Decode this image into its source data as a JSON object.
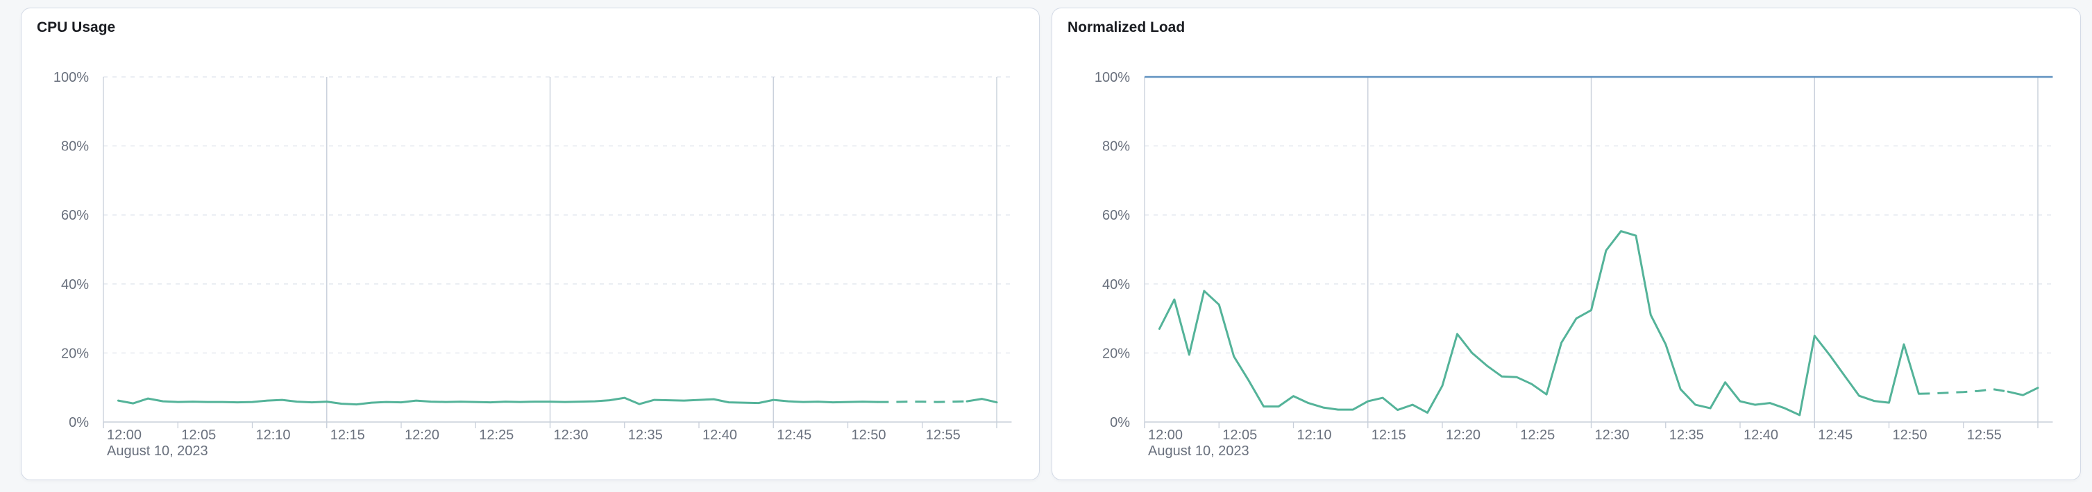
{
  "colors": {
    "series_green": "#54b399",
    "series_blue": "#6092c0",
    "axis_label": "#69707d",
    "title_text": "#1a1c21",
    "grid_vertical": "#c8cfda",
    "grid_dashed": "#dfe4ec",
    "panel_border": "#d3dae6",
    "page_background": "#f5f7f9"
  },
  "chart_data": [
    {
      "type": "line",
      "title": "CPU Usage",
      "date_label": "August 10, 2023",
      "xlabel": "",
      "ylabel": "",
      "ylim": [
        0,
        100
      ],
      "xlim_minutes": [
        0,
        61
      ],
      "grid": true,
      "legend": "none",
      "x_tick_interval_minutes": 5,
      "x_tick_labels": [
        "12:00",
        "12:05",
        "12:10",
        "12:15",
        "12:20",
        "12:25",
        "12:30",
        "12:35",
        "12:40",
        "12:45",
        "12:50",
        "12:55"
      ],
      "x_major_gridline_minutes": [
        15,
        30,
        45,
        60
      ],
      "y_ticks": [
        0,
        20,
        40,
        60,
        80,
        100
      ],
      "y_tick_labels": [
        "0%",
        "20%",
        "40%",
        "60%",
        "80%",
        "100%"
      ],
      "series": [
        {
          "name": "CPU Usage",
          "color": "#54b399",
          "start_minute": 1,
          "dashed_segment_minutes": [
            52,
            58
          ],
          "values": [
            6.2,
            5.4,
            6.8,
            6.0,
            5.8,
            5.9,
            5.8,
            5.8,
            5.7,
            5.8,
            6.2,
            6.4,
            5.9,
            5.7,
            5.9,
            5.3,
            5.1,
            5.6,
            5.8,
            5.7,
            6.2,
            5.9,
            5.8,
            5.9,
            5.8,
            5.7,
            5.9,
            5.8,
            5.9,
            5.9,
            5.8,
            5.9,
            6.0,
            6.3,
            7.0,
            5.2,
            6.4,
            6.3,
            6.2,
            6.4,
            6.6,
            5.7,
            5.6,
            5.5,
            6.4,
            6.0,
            5.8,
            5.9,
            5.7,
            5.8,
            5.9,
            5.8,
            5.8,
            5.9,
            5.9,
            5.8,
            5.9,
            6.0,
            6.7,
            5.7
          ]
        }
      ]
    },
    {
      "type": "line",
      "title": "Normalized Load",
      "date_label": "August 10, 2023",
      "xlabel": "",
      "ylabel": "",
      "ylim": [
        0,
        100
      ],
      "xlim_minutes": [
        0,
        61
      ],
      "grid": true,
      "legend": "none",
      "x_tick_interval_minutes": 5,
      "x_tick_labels": [
        "12:00",
        "12:05",
        "12:10",
        "12:15",
        "12:20",
        "12:25",
        "12:30",
        "12:35",
        "12:40",
        "12:45",
        "12:50",
        "12:55"
      ],
      "x_major_gridline_minutes": [
        15,
        30,
        45,
        60
      ],
      "y_ticks": [
        0,
        20,
        40,
        60,
        80,
        100
      ],
      "y_tick_labels": [
        "0%",
        "20%",
        "40%",
        "60%",
        "80%",
        "100%"
      ],
      "series": [
        {
          "name": "Normalized Load",
          "color": "#54b399",
          "start_minute": 1,
          "dashed_segment_minutes": [
            52,
            58
          ],
          "values": [
            27,
            35.5,
            19.5,
            38,
            34,
            19,
            12,
            4.5,
            4.5,
            7.5,
            5.5,
            4.2,
            3.6,
            3.6,
            6,
            7,
            3.5,
            5,
            2.7,
            10.5,
            25.5,
            20,
            16.3,
            13.2,
            13,
            11,
            8,
            23,
            30,
            32.4,
            49.7,
            55.3,
            54,
            31,
            22.5,
            9.5,
            5,
            4,
            11.5,
            6,
            5,
            5.5,
            4,
            2,
            25,
            19.5,
            13.5,
            7.6,
            6.1,
            5.6,
            22.5,
            8.2,
            8.3,
            8.5,
            8.7,
            9,
            9.5,
            8.8,
            7.8,
            9.9
          ]
        },
        {
          "name": "Limit 100%",
          "color": "#6092c0",
          "reference": true,
          "constant_value": 100,
          "span_minutes": [
            0,
            61
          ]
        }
      ]
    }
  ]
}
